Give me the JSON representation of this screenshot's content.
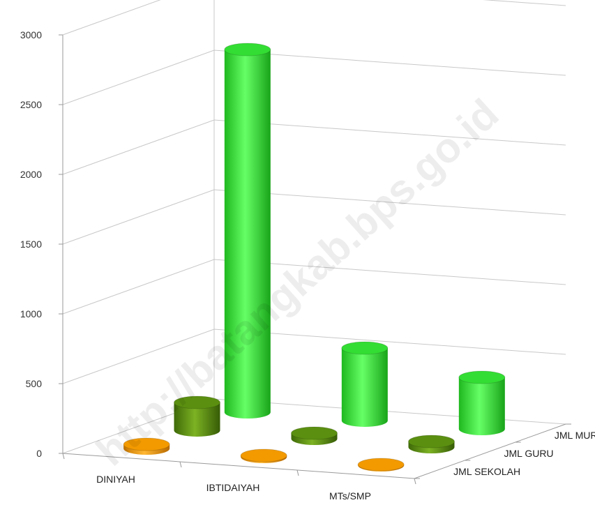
{
  "chart_data": {
    "type": "bar",
    "style": "3d-cylinder",
    "categories": [
      "DINIYAH",
      "IBTIDAIYAH",
      "MTs/SMP"
    ],
    "series": [
      {
        "name": "JML SEKOLAH",
        "values": [
          30,
          10,
          5
        ],
        "color": "#f39a00"
      },
      {
        "name": "JML GURU",
        "values": [
          200,
          40,
          40
        ],
        "color": "#5a8f10"
      },
      {
        "name": "JML MURID",
        "values": [
          2600,
          520,
          370
        ],
        "color": "#33dd33"
      }
    ],
    "y_ticks": [
      "0",
      "500",
      "1000",
      "1500",
      "2000",
      "2500",
      "3000"
    ],
    "ylim": [
      0,
      3000
    ],
    "grid": true,
    "legend": "none",
    "title": "",
    "xlabel": "",
    "ylabel": ""
  },
  "watermark": "http://batangkab.bps.go.id"
}
